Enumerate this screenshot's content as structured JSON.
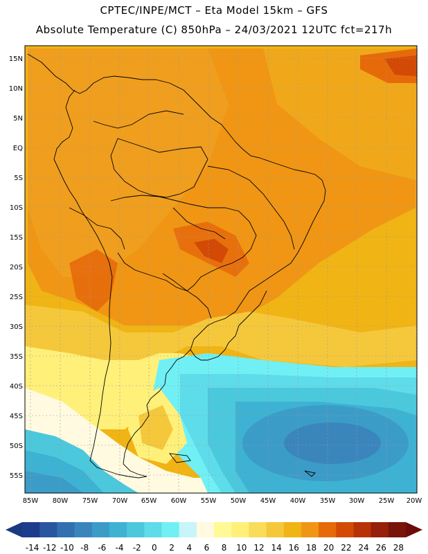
{
  "title": {
    "line1": "CPTEC/INPE/MCT –  Eta Model 15km – GFS",
    "line2": "Absolute Temperature (C) 850hPa – 24/03/2021 12UTC fct=217h"
  },
  "map": {
    "lat_labels": [
      "15N",
      "10N",
      "5N",
      "EQ",
      "5S",
      "10S",
      "15S",
      "20S",
      "25S",
      "30S",
      "35S",
      "40S",
      "45S",
      "50S",
      "55S"
    ],
    "lon_labels": [
      "85W",
      "80W",
      "75W",
      "70W",
      "65W",
      "60W",
      "55W",
      "50W",
      "45W",
      "40W",
      "35W",
      "30W",
      "25W",
      "20W"
    ],
    "extent": {
      "lat_north": 16.5,
      "lat_south": -57.5,
      "lon_west": -86,
      "lon_east": -20
    }
  },
  "colorbar": {
    "labels": [
      "-14",
      "-12",
      "-10",
      "-8",
      "-6",
      "-4",
      "-2",
      "0",
      "2",
      "4",
      "6",
      "8",
      "10",
      "12",
      "14",
      "16",
      "18",
      "20",
      "22",
      "24",
      "26",
      "28"
    ],
    "under_color": "#1a3a80",
    "over_color": "#6e0a0a",
    "colors": [
      "#1e3c8c",
      "#2a55a0",
      "#3270b0",
      "#3a86bc",
      "#3c9cc8",
      "#3eb2d2",
      "#4cc8dc",
      "#5edcea",
      "#70f0f4",
      "#c8f4fa",
      "#fffae0",
      "#fffa96",
      "#fff07a",
      "#f8dc5a",
      "#f5c83c",
      "#f0b414",
      "#f09614",
      "#e66a0a",
      "#d24a05",
      "#b83208",
      "#96200a",
      "#781408"
    ]
  }
}
